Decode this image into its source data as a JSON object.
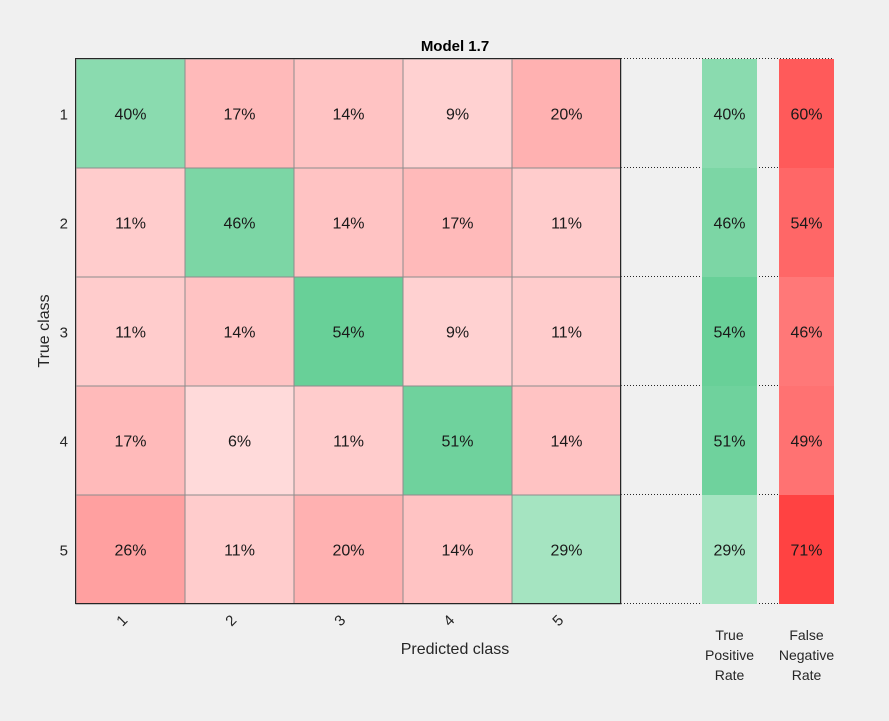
{
  "chart_data": {
    "type": "heatmap",
    "title": "Model 1.7",
    "xlabel": "Predicted class",
    "ylabel": "True class",
    "row_labels": [
      "1",
      "2",
      "3",
      "4",
      "5"
    ],
    "col_labels": [
      "1",
      "2",
      "3",
      "4",
      "5"
    ],
    "matrix": [
      [
        40,
        17,
        14,
        9,
        20
      ],
      [
        11,
        46,
        14,
        17,
        11
      ],
      [
        11,
        14,
        54,
        9,
        11
      ],
      [
        17,
        6,
        11,
        51,
        14
      ],
      [
        26,
        11,
        20,
        14,
        29
      ]
    ],
    "unit": "%",
    "summary_columns": [
      {
        "label": "True Positive Rate",
        "label_lines": [
          "True",
          "Positive",
          "Rate"
        ],
        "values": [
          40,
          46,
          54,
          51,
          29
        ]
      },
      {
        "label": "False Negative Rate",
        "label_lines": [
          "False",
          "Negative",
          "Rate"
        ],
        "values": [
          60,
          54,
          46,
          49,
          71
        ]
      }
    ]
  }
}
